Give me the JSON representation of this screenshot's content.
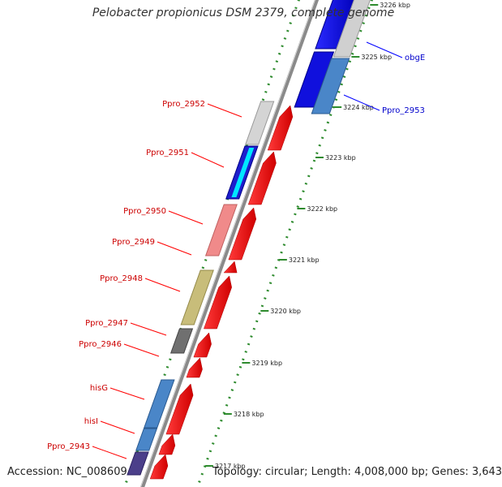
{
  "title": "Pelobacter propionicus DSM 2379, complete genome",
  "accession_text": "Accession: NC_008609",
  "stats_text": "Topology: circular; Length: 4,008,000 bp; Genes: 3,643",
  "ruler_ticks": [
    {
      "label": "3226 kbp"
    },
    {
      "label": "3225 kbp"
    },
    {
      "label": "3224 kbp"
    },
    {
      "label": "3223 kbp"
    },
    {
      "label": "3222 kbp"
    },
    {
      "label": "3221 kbp"
    },
    {
      "label": "3220 kbp"
    },
    {
      "label": "3219 kbp"
    },
    {
      "label": "3218 kbp"
    },
    {
      "label": "3217 kbp"
    }
  ],
  "gene_labels_left": [
    {
      "text": "Ppro_2952",
      "color": "#cc0000"
    },
    {
      "text": "Ppro_2951",
      "color": "#cc0000"
    },
    {
      "text": "Ppro_2950",
      "color": "#cc0000"
    },
    {
      "text": "Ppro_2949",
      "color": "#cc0000"
    },
    {
      "text": "Ppro_2948",
      "color": "#cc0000"
    },
    {
      "text": "Ppro_2947",
      "color": "#cc0000"
    },
    {
      "text": "Ppro_2946",
      "color": "#cc0000"
    },
    {
      "text": "hisG",
      "color": "#cc0000"
    },
    {
      "text": "hisI",
      "color": "#cc0000"
    },
    {
      "text": "Ppro_2943",
      "color": "#cc0000"
    }
  ],
  "gene_labels_right": [
    {
      "text": "obgE",
      "color": "#0000cc"
    },
    {
      "text": "Ppro_2953",
      "color": "#0000cc"
    }
  ]
}
